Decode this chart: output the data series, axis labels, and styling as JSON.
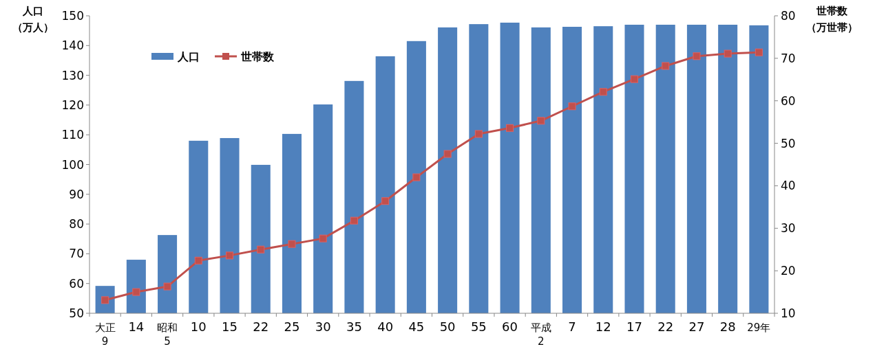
{
  "chart_data": {
    "type": "bar",
    "categories": [
      "大正\n9",
      "14",
      "昭和\n5",
      "10",
      "15",
      "22",
      "25",
      "30",
      "35",
      "40",
      "45",
      "50",
      "55",
      "60",
      "平成\n2",
      "7",
      "12",
      "17",
      "22",
      "27",
      "28",
      "29年"
    ],
    "ylabel": "人口（万人）",
    "y2label": "世帯数（万世帯）",
    "ylim": [
      50,
      150
    ],
    "yticks": [
      50,
      60,
      70,
      80,
      90,
      100,
      110,
      120,
      130,
      140,
      150
    ],
    "y2lim": [
      10,
      80
    ],
    "y2ticks": [
      10,
      20,
      30,
      40,
      50,
      60,
      70,
      80
    ],
    "legend": "top left",
    "marker": "square",
    "series": [
      {
        "name": "人口",
        "color": "#4f81bd",
        "values": [
          59.2,
          68.0,
          76.3,
          108.0,
          108.9,
          99.9,
          110.3,
          120.2,
          128.1,
          136.4,
          141.5,
          146.1,
          147.2,
          147.7,
          146.1,
          146.3,
          146.5,
          147.0,
          147.0,
          147.0,
          147.0,
          146.8
        ]
      },
      {
        "name": "世帯数",
        "type": "line",
        "axis": "y2",
        "color": "#c0504d",
        "values": [
          13.1,
          15.0,
          16.3,
          22.4,
          23.6,
          25.0,
          26.3,
          27.6,
          31.8,
          36.4,
          42.0,
          47.5,
          52.2,
          53.6,
          55.3,
          58.7,
          62.1,
          65.1,
          68.2,
          70.5,
          71.1,
          71.4
        ]
      }
    ]
  }
}
